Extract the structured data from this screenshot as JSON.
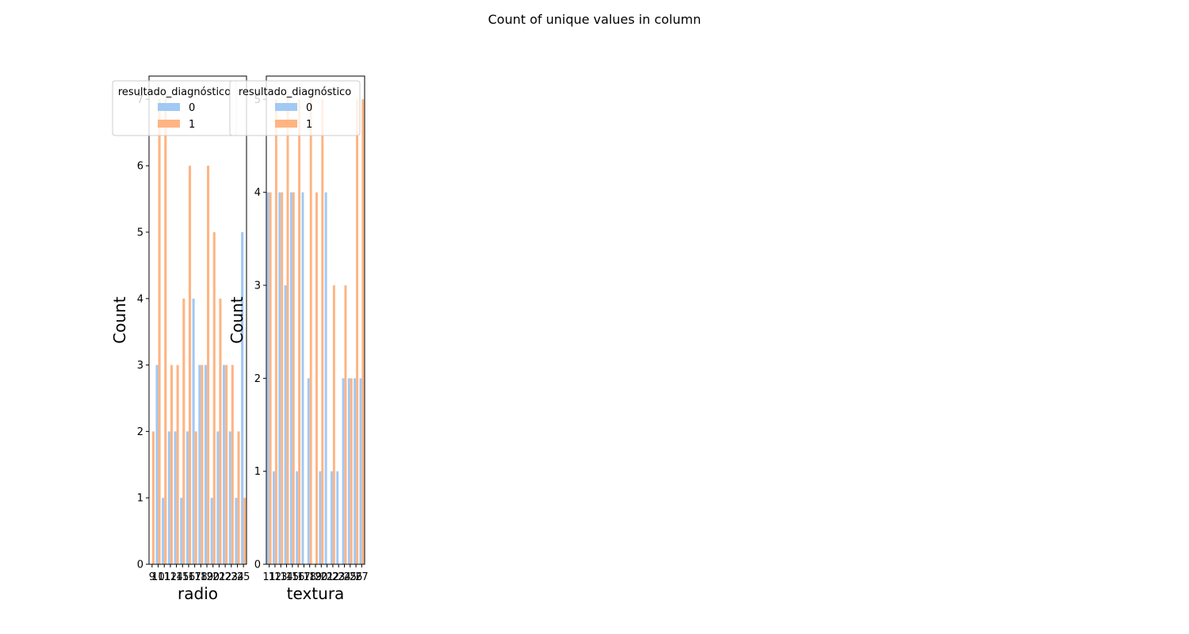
{
  "suptitle": "Count of unique values in column",
  "colors": {
    "0": "#a1c9f4",
    "1": "#ffb482"
  },
  "chart_data": [
    {
      "type": "bar",
      "xlabel": "radio",
      "ylabel": "Count",
      "ylim": [
        0,
        7.35
      ],
      "yticks": [
        0,
        1,
        2,
        3,
        4,
        5,
        6,
        7
      ],
      "categories": [
        "9",
        "10",
        "11",
        "12",
        "14",
        "15",
        "16",
        "17",
        "18",
        "19",
        "20",
        "21",
        "22",
        "23",
        "24",
        "25"
      ],
      "series": [
        {
          "name": "0",
          "values": [
            0,
            3,
            1,
            2,
            2,
            1,
            2,
            4,
            3,
            3,
            1,
            2,
            3,
            2,
            1,
            5
          ]
        },
        {
          "name": "1",
          "values": [
            2,
            7,
            7,
            3,
            3,
            4,
            6,
            2,
            3,
            6,
            5,
            4,
            3,
            3,
            2,
            1
          ]
        }
      ],
      "legend": {
        "title": "resultado_diagnóstico",
        "entries": [
          "0",
          "1"
        ],
        "placement": "top-center"
      }
    },
    {
      "type": "bar",
      "xlabel": "textura",
      "ylabel": "Count",
      "ylim": [
        0,
        5.25
      ],
      "yticks": [
        0,
        1,
        2,
        3,
        4,
        5
      ],
      "categories": [
        "11",
        "12",
        "13",
        "14",
        "15",
        "16",
        "17",
        "18",
        "19",
        "20",
        "21",
        "22",
        "23",
        "24",
        "25",
        "26",
        "27"
      ],
      "series": [
        {
          "name": "0",
          "values": [
            4,
            1,
            4,
            3,
            4,
            1,
            4,
            2,
            0,
            1,
            4,
            1,
            1,
            2,
            2,
            2,
            2
          ]
        },
        {
          "name": "1",
          "values": [
            4,
            5,
            4,
            5,
            4,
            5,
            0,
            5,
            4,
            5,
            0,
            3,
            0,
            3,
            2,
            5,
            5
          ]
        }
      ],
      "legend": {
        "title": "resultado_diagnóstico",
        "entries": [
          "0",
          "1"
        ],
        "placement": "top-center"
      }
    }
  ]
}
